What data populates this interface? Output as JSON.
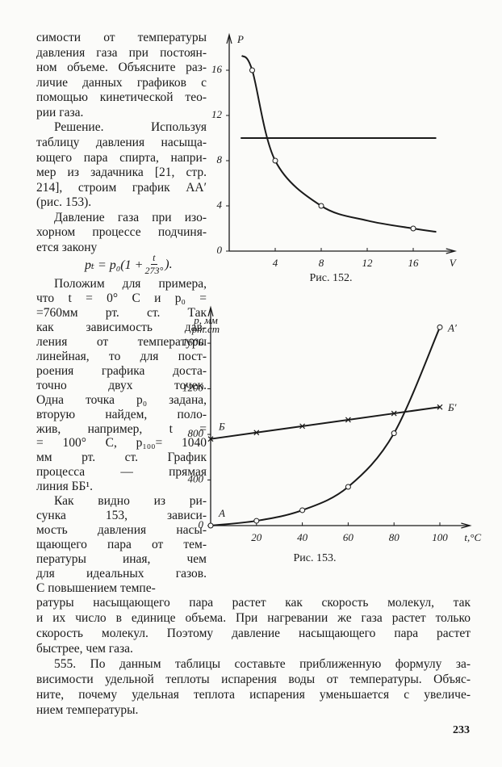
{
  "text": {
    "left_paragraphs": [
      [
        "симости от температуры",
        "давления газа при постоян-",
        "ном объеме. Объясните раз-",
        "личие данных графиков с",
        "помощью кинетической тео-",
        "рии газа."
      ],
      [
        "Решение. Используя",
        "таблицу давления насыща-",
        "ющего пара спирта, напри-",
        "мер из задачника [21, стр.",
        "214], строим график AA′",
        "(рис. 153)."
      ],
      [
        "Давление газа при изо-",
        "хорном процессе подчиня-",
        "ется закону"
      ]
    ],
    "formula": {
      "left": "pₜ = p₀(1 + ",
      "numerator": "t",
      "denominator": "273°",
      "right": ")."
    },
    "left_paragraphs_lower": [
      [
        "Положим для примера,",
        "что t = 0° C и p₀ =",
        "=760мм рт. ст. Так",
        "как зависимость дав-",
        "ления от температуры",
        "линейная, то для пост-",
        "роения графика доста-",
        "точно двух точек.",
        "Одна точка p₀ задана,",
        "вторую найдем, поло-",
        "жив, например, t =",
        "= 100° C, p₁₀₀= 1040",
        "мм рт. ст. График",
        "процесса — прямая",
        "линия ББ¹."
      ],
      [
        "Как видно из ри-",
        "сунка 153, зависи-",
        "мость давления насы-",
        "щающего пара от тем-",
        "пературы иная, чем",
        "для идеальных газов.",
        "С повышением темпе-"
      ]
    ],
    "full_paragraphs": [
      [
        "ратуры насыщающего пара растет как скорость молекул, так",
        "и их число в единице объема. При нагревании же газа растет только",
        "скорость молекул. Поэтому давление насыщающего пара растет",
        "быстрее, чем газа."
      ],
      [
        "555. По данным таблицы составьте приближенную формулу за-",
        "висимости удельной теплоты испарения воды от температуры. Объяс-",
        "ните, почему удельная теплота испарения уменьшается с увеличе-",
        "нием температуры."
      ]
    ],
    "page_number": "233"
  },
  "chart_data": [
    {
      "type": "line",
      "caption": "Рис. 152.",
      "y_label": "P",
      "x_label": "V",
      "xlim": [
        0,
        19
      ],
      "ylim": [
        0,
        18.5
      ],
      "xticks": [
        4,
        8,
        12,
        16
      ],
      "yticks": [
        0,
        4,
        8,
        12,
        16
      ],
      "series": [
        {
          "color": "#1a1a1a",
          "x": [
            1.1,
            2,
            4,
            8,
            12,
            16,
            18
          ],
          "values": [
            17.3,
            16,
            8,
            4,
            2.7,
            2,
            1.7
          ],
          "marker": "none",
          "smooth": true
        },
        {
          "color": "#1a1a1a",
          "x": [
            2,
            4,
            8,
            16
          ],
          "values": [
            16,
            8,
            4,
            2
          ],
          "marker": "circle",
          "line": false
        },
        {
          "color": "#1a1a1a",
          "x": [
            1,
            18
          ],
          "values": [
            10,
            10
          ],
          "marker": "none"
        }
      ]
    },
    {
      "type": "line",
      "caption": "Рис. 153.",
      "y_label": [
        "р, мм",
        "рт.ст"
      ],
      "x_label": "t,°C",
      "xlim": [
        0,
        110
      ],
      "ylim": [
        0,
        1850
      ],
      "xticks": [
        20,
        40,
        60,
        80,
        100
      ],
      "yticks": [
        0,
        400,
        800,
        1200,
        1600
      ],
      "series": [
        {
          "color": "#1a1a1a",
          "x": [
            0,
            20,
            40,
            60,
            80,
            100
          ],
          "values": [
            0,
            42,
            135,
            340,
            810,
            1740
          ],
          "marker": "circle",
          "smooth": true,
          "start_label": "А",
          "end_label": "А′"
        },
        {
          "color": "#1a1a1a",
          "x": [
            0,
            20,
            40,
            60,
            80,
            100
          ],
          "values": [
            760,
            816,
            872,
            928,
            984,
            1040
          ],
          "marker": "cross",
          "start_label": "Б",
          "end_label": "Б′"
        }
      ]
    }
  ]
}
